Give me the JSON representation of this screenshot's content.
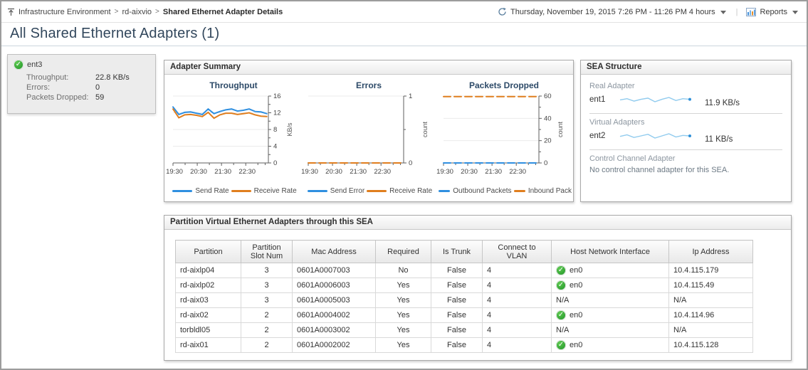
{
  "icons": {
    "check": "✓",
    "crumb_sep": ">"
  },
  "header": {
    "breadcrumb": {
      "root": "Infrastructure Environment",
      "parent": "rd-aixvio",
      "current": "Shared Ethernet Adapter Details"
    },
    "time_range": "Thursday, November 19, 2015 7:26 PM - 11:26 PM 4 hours",
    "reports_label": "Reports"
  },
  "page_title": "All Shared Ethernet Adapters (1)",
  "selected_adapter": {
    "name": "ent3",
    "metrics": [
      {
        "label": "Throughput:",
        "value": "22.8 KB/s"
      },
      {
        "label": "Errors:",
        "value": "0"
      },
      {
        "label": "Packets Dropped:",
        "value": "59"
      }
    ]
  },
  "adapter_summary": {
    "title": "Adapter Summary"
  },
  "chart_data": [
    {
      "id": "throughput",
      "type": "line",
      "title": "Throughput",
      "ylabel": "KB/s",
      "ylim": [
        0,
        16
      ],
      "yticks": [
        0,
        4,
        8,
        12,
        16
      ],
      "x_max_minutes": 236,
      "x_step_minutes": 14.5,
      "xticks": [
        {
          "minute": 0,
          "label": "19:30"
        },
        {
          "minute": 60,
          "label": "20:30"
        },
        {
          "minute": 120,
          "label": "21:30"
        },
        {
          "minute": 180,
          "label": "22:30"
        }
      ],
      "xminor_minutes": [
        30,
        90,
        150,
        210,
        228
      ],
      "grid": true,
      "legend_position": "bottom",
      "series": [
        {
          "name": "Send Rate",
          "color": "#2F8FE0",
          "dashed": false,
          "values": [
            13.4,
            11.6,
            12.1,
            12.2,
            11.9,
            11.6,
            12.9,
            11.8,
            12.3,
            12.7,
            12.9,
            12.4,
            12.6,
            12.9,
            12.3,
            12.2,
            11.8
          ]
        },
        {
          "name": "Receive Rate",
          "color": "#E07E1E",
          "dashed": false,
          "values": [
            12.9,
            10.8,
            11.5,
            11.6,
            11.4,
            11.1,
            12.1,
            10.7,
            11.5,
            11.9,
            11.9,
            11.6,
            11.8,
            12.0,
            11.5,
            11.2,
            11.1
          ]
        }
      ]
    },
    {
      "id": "errors",
      "type": "line",
      "title": "Errors",
      "ylabel": "count",
      "ylim": [
        0,
        1
      ],
      "yticks": [
        0,
        1
      ],
      "x_max_minutes": 236,
      "x_step_minutes": 14.5,
      "xticks": [
        {
          "minute": 0,
          "label": "19:30"
        },
        {
          "minute": 60,
          "label": "20:30"
        },
        {
          "minute": 120,
          "label": "21:30"
        },
        {
          "minute": 180,
          "label": "22:30"
        }
      ],
      "xminor_minutes": [
        30,
        90,
        150,
        210,
        228
      ],
      "grid": true,
      "legend_position": "bottom",
      "series": [
        {
          "name": "Send Error",
          "color": "#2F8FE0",
          "dashed": true,
          "values": [
            0,
            0,
            0,
            0,
            0,
            0,
            0,
            0,
            0,
            0,
            0,
            0,
            0,
            0,
            0,
            0,
            0
          ]
        },
        {
          "name": "Receive Rate",
          "color": "#E07E1E",
          "dashed": true,
          "values": [
            0,
            0,
            0,
            0,
            0,
            0,
            0,
            0,
            0,
            0,
            0,
            0,
            0,
            0,
            0,
            0,
            0
          ]
        }
      ]
    },
    {
      "id": "packets-dropped",
      "type": "line",
      "title": "Packets Dropped",
      "ylabel": "count",
      "ylim": [
        0,
        60
      ],
      "yticks": [
        0,
        20,
        40,
        60
      ],
      "x_max_minutes": 236,
      "x_step_minutes": 14.5,
      "xticks": [
        {
          "minute": 0,
          "label": "19:30"
        },
        {
          "minute": 60,
          "label": "20:30"
        },
        {
          "minute": 120,
          "label": "21:30"
        },
        {
          "minute": 180,
          "label": "22:30"
        }
      ],
      "xminor_minutes": [
        30,
        90,
        150,
        210,
        228
      ],
      "grid": true,
      "legend_position": "bottom",
      "series": [
        {
          "name": "Outbound Packets",
          "color": "#2F8FE0",
          "dashed": true,
          "values": [
            0,
            0,
            0,
            0,
            0,
            0,
            0,
            0,
            0,
            0,
            0,
            0,
            0,
            0,
            0,
            0,
            0
          ]
        },
        {
          "name": "Inbound Pack",
          "color": "#E07E1E",
          "dashed": true,
          "values": [
            59.5,
            59.5,
            59.5,
            59.5,
            59.5,
            59.5,
            59.5,
            59.5,
            59.5,
            59.5,
            59.5,
            59.5,
            59.5,
            59.5,
            59.5,
            59.5,
            59.5
          ]
        }
      ]
    }
  ],
  "sea_structure": {
    "title": "SEA Structure",
    "sections": [
      {
        "label": "Real Adapter",
        "name": "ent1",
        "value": "11.9 KB/s",
        "spark": [
          11.8,
          12.0,
          11.6,
          11.9,
          12.1,
          11.5,
          11.9,
          12.2,
          11.7,
          12.0,
          11.9
        ]
      },
      {
        "label": "Virtual Adapters",
        "name": "ent2",
        "value": "11 KB/s",
        "spark": [
          11.0,
          11.3,
          10.8,
          11.1,
          11.4,
          10.7,
          11.1,
          11.5,
          10.9,
          11.2,
          11.1
        ]
      },
      {
        "label": "Control Channel Adapter",
        "note": "No control channel adapter for this SEA."
      }
    ]
  },
  "partition_table": {
    "title": "Partition Virtual Ethernet Adapters through this SEA",
    "columns": [
      "Partition",
      "Partition Slot Num",
      "Mac Address",
      "Required",
      "Is Trunk",
      "Connect to VLAN",
      "Host Network Interface",
      "Ip Address"
    ],
    "rows": [
      {
        "partition": "rd-aixlp04",
        "slot": "3",
        "mac": "0601A0007003",
        "required": "No",
        "is_trunk": "False",
        "vlan": "4",
        "host_if": "en0",
        "host_if_ok": true,
        "ip": "10.4.115.179"
      },
      {
        "partition": "rd-aixlp02",
        "slot": "3",
        "mac": "0601A0006003",
        "required": "Yes",
        "is_trunk": "False",
        "vlan": "4",
        "host_if": "en0",
        "host_if_ok": true,
        "ip": "10.4.115.49"
      },
      {
        "partition": "rd-aix03",
        "slot": "3",
        "mac": "0601A0005003",
        "required": "Yes",
        "is_trunk": "False",
        "vlan": "4",
        "host_if": "N/A",
        "host_if_ok": false,
        "ip": "N/A"
      },
      {
        "partition": "rd-aix02",
        "slot": "2",
        "mac": "0601A0004002",
        "required": "Yes",
        "is_trunk": "False",
        "vlan": "4",
        "host_if": "en0",
        "host_if_ok": true,
        "ip": "10.4.114.96"
      },
      {
        "partition": "torbldl05",
        "slot": "2",
        "mac": "0601A0003002",
        "required": "Yes",
        "is_trunk": "False",
        "vlan": "4",
        "host_if": "N/A",
        "host_if_ok": false,
        "ip": "N/A"
      },
      {
        "partition": "rd-aix01",
        "slot": "2",
        "mac": "0601A0002002",
        "required": "Yes",
        "is_trunk": "False",
        "vlan": "4",
        "host_if": "en0",
        "host_if_ok": true,
        "ip": "10.4.115.128"
      }
    ]
  },
  "colors": {
    "series_blue": "#2F8FE0",
    "series_orange": "#E07E1E",
    "spark_line": "#90CBEE",
    "spark_dot": "#2E8FD8",
    "status_green": "#2FA832"
  }
}
